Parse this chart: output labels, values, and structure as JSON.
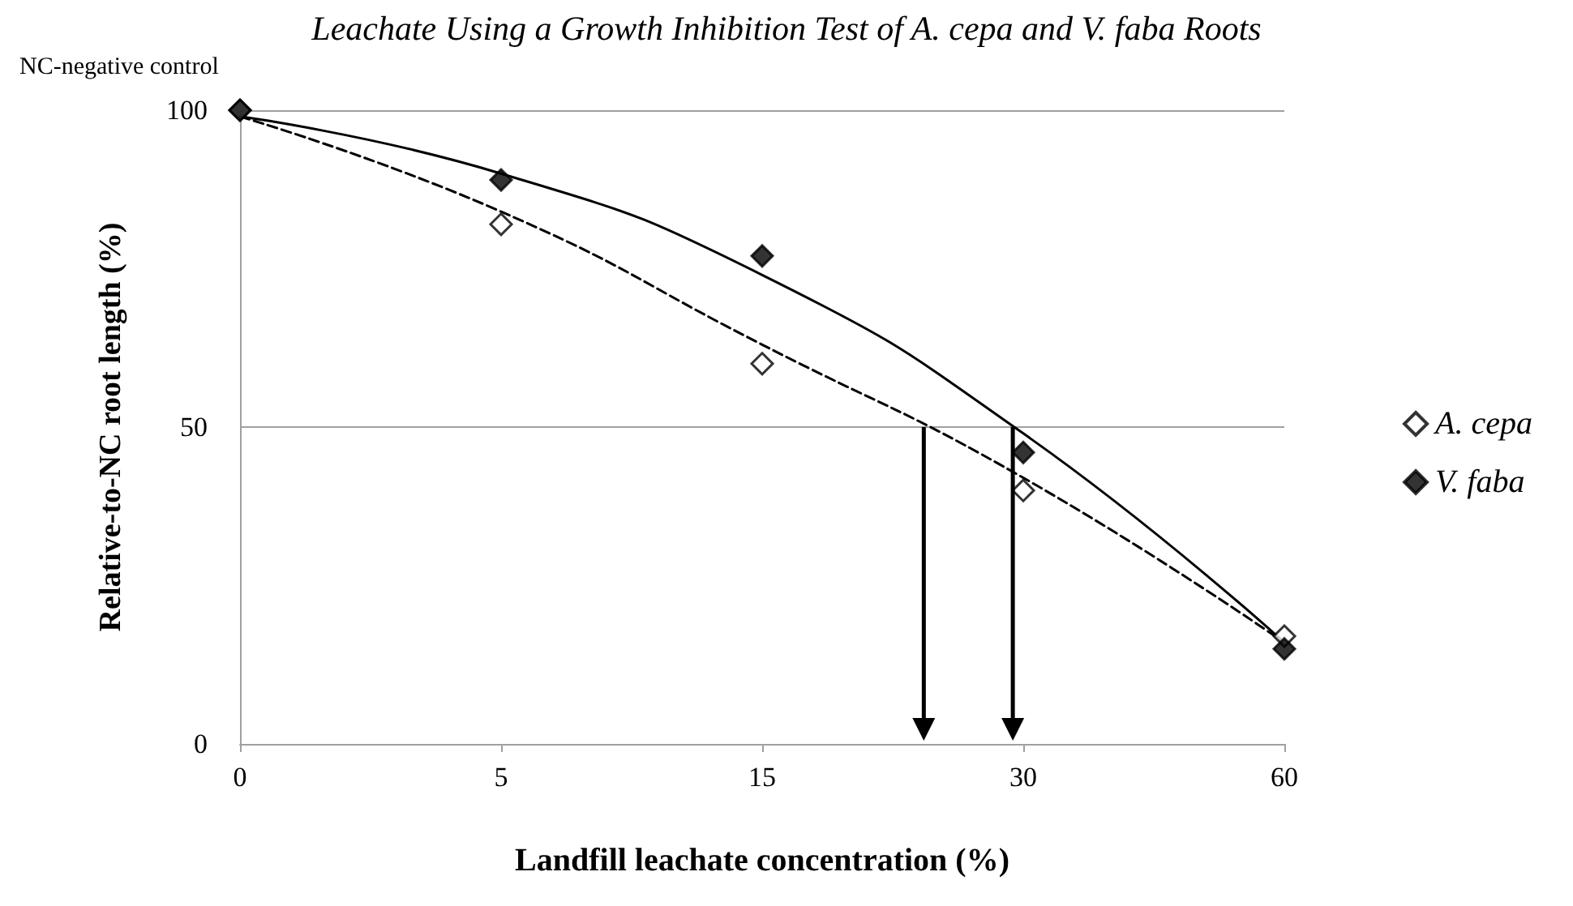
{
  "chart_data": {
    "type": "scatter",
    "title": "Leachate Using a Growth Inhibition Test of A. cepa and V. faba Roots",
    "xlabel": "Landfill leachate concentration (%)",
    "ylabel": "Relative-to-NC root length (%)",
    "annotations": [
      "NC-negative control"
    ],
    "categories": [
      "0",
      "5",
      "15",
      "30",
      "60"
    ],
    "series": [
      {
        "name": "A. cepa",
        "color": "#ffffff",
        "values": [
          100,
          82,
          60,
          40,
          17
        ]
      },
      {
        "name": "V. faba",
        "color": "#000000",
        "values": [
          100,
          89,
          77,
          46,
          15
        ]
      },
      {
        "type": "line",
        "color": "#000000",
        "line_style": "dashed",
        "marker": "none",
        "values": [
          99,
          84,
          63,
          42,
          16
        ]
      },
      {
        "type": "line",
        "color": "#000000",
        "line_style": "solid",
        "marker": "none",
        "values": [
          99,
          90,
          74,
          49,
          16
        ]
      }
    ],
    "ylim": [
      0,
      100
    ],
    "yticks": [
      0,
      50,
      100
    ],
    "grid": "y",
    "legend": "right",
    "marker": "diamond"
  }
}
